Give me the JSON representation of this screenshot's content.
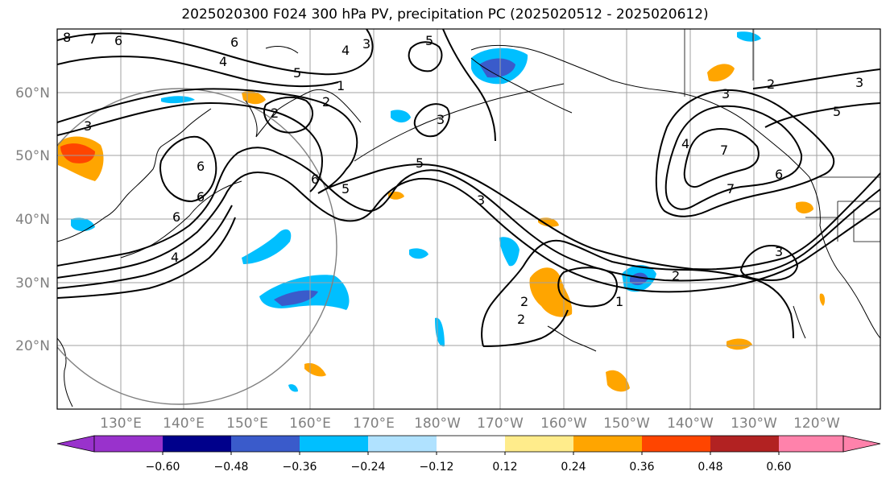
{
  "title": "2025020300 F024 300 hPa PV, precipitation PC (2025020512 - 2025020612)",
  "map": {
    "lat_labels": [
      "60°N",
      "50°N",
      "40°N",
      "30°N",
      "20°N"
    ],
    "lon_labels": [
      "130°E",
      "140°E",
      "150°E",
      "160°E",
      "170°E",
      "180°W",
      "170°W",
      "160°W",
      "150°W",
      "140°W",
      "130°W",
      "120°W"
    ],
    "contour_labels": [
      "8",
      "7",
      "6",
      "6",
      "4",
      "5",
      "4",
      "3",
      "5",
      "3",
      "2",
      "3",
      "6",
      "6",
      "6",
      "5",
      "4",
      "5",
      "3",
      "2",
      "1",
      "2",
      "3",
      "3",
      "7",
      "6",
      "2",
      "3",
      "5",
      "7",
      "6",
      "4",
      "2",
      "1",
      "2"
    ]
  },
  "colorbar": {
    "tick_labels": [
      "−0.60",
      "−0.48",
      "−0.36",
      "−0.24",
      "−0.12",
      "0.12",
      "0.24",
      "0.36",
      "0.48",
      "0.60"
    ],
    "colors": [
      "#9932CC",
      "#00008B",
      "#3A5BCB",
      "#00BFFF",
      "#B0E2FF",
      "#FFFFFF",
      "#FFEC8B",
      "#FFA500",
      "#FF4500",
      "#B22222",
      "#FF82AB"
    ]
  },
  "colors": {
    "grid": "#a0a0a0",
    "coast": "#000000",
    "contour": "#000000",
    "circle": "#808080"
  }
}
